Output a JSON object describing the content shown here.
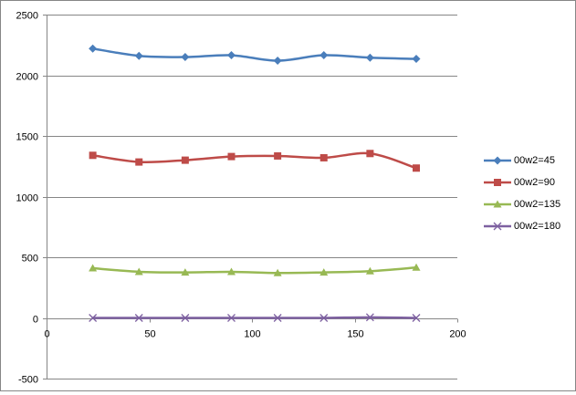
{
  "chart_data": {
    "type": "line",
    "title": "",
    "xlabel": "",
    "ylabel": "",
    "xlim": [
      0,
      200
    ],
    "ylim": [
      -500,
      2500
    ],
    "x_ticks": [
      0,
      50,
      100,
      150,
      200
    ],
    "y_ticks": [
      -500,
      0,
      500,
      1000,
      1500,
      2000,
      2500
    ],
    "grid": "horizontal",
    "legend_position": "right",
    "x": [
      22.5,
      45,
      67.5,
      90,
      112.5,
      135,
      157.5,
      180
    ],
    "series": [
      {
        "name": "00w2=45",
        "color": "#4A7EBB",
        "marker": "diamond",
        "values": [
          2220,
          2160,
          2150,
          2165,
          2120,
          2165,
          2145,
          2135
        ]
      },
      {
        "name": "00w2=90",
        "color": "#BE4B48",
        "marker": "square",
        "values": [
          1340,
          1285,
          1300,
          1330,
          1335,
          1320,
          1355,
          1235
        ]
      },
      {
        "name": "00w2=135",
        "color": "#98B954",
        "marker": "triangle",
        "values": [
          410,
          380,
          375,
          380,
          370,
          375,
          385,
          415
        ]
      },
      {
        "name": "00w2=180",
        "color": "#7D60A0",
        "marker": "x",
        "values": [
          0,
          0,
          0,
          0,
          0,
          0,
          5,
          0
        ]
      }
    ]
  }
}
